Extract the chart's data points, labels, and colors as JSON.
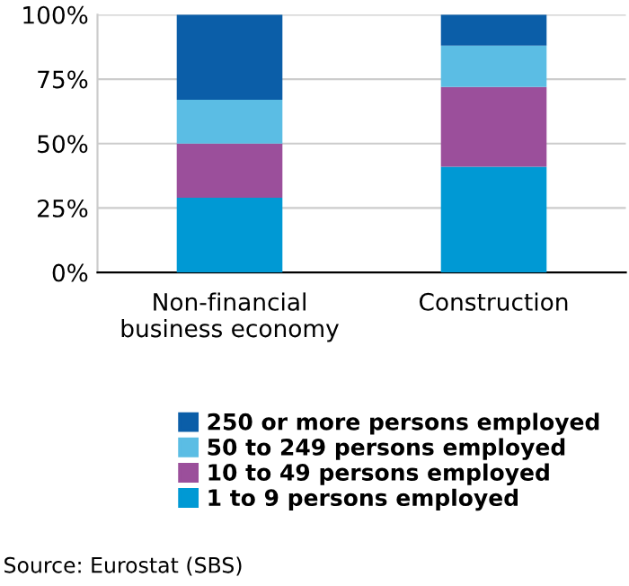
{
  "chart_data": {
    "type": "bar",
    "stacked": true,
    "categories": [
      "Non-financial\nbusiness economy",
      "Construction"
    ],
    "series": [
      {
        "name": "1 to 9 persons employed",
        "color": "#0099d4",
        "values": [
          29,
          41
        ]
      },
      {
        "name": "10 to 49 persons employed",
        "color": "#9b4f9b",
        "values": [
          21,
          31
        ]
      },
      {
        "name": "50 to 249 persons employed",
        "color": "#5bbde4",
        "values": [
          17,
          16
        ]
      },
      {
        "name": "250 or more persons employed",
        "color": "#0b5ea8",
        "values": [
          33,
          12
        ]
      }
    ],
    "ylim": [
      0,
      100
    ],
    "yticks": [
      {
        "value": 0,
        "label": "0%"
      },
      {
        "value": 25,
        "label": "25%"
      },
      {
        "value": 50,
        "label": "50%"
      },
      {
        "value": 75,
        "label": "75%"
      },
      {
        "value": 100,
        "label": "100%"
      }
    ],
    "grid": "y",
    "legend": "bottom",
    "annotations": [
      "Source: Eurostat (SBS)"
    ]
  }
}
